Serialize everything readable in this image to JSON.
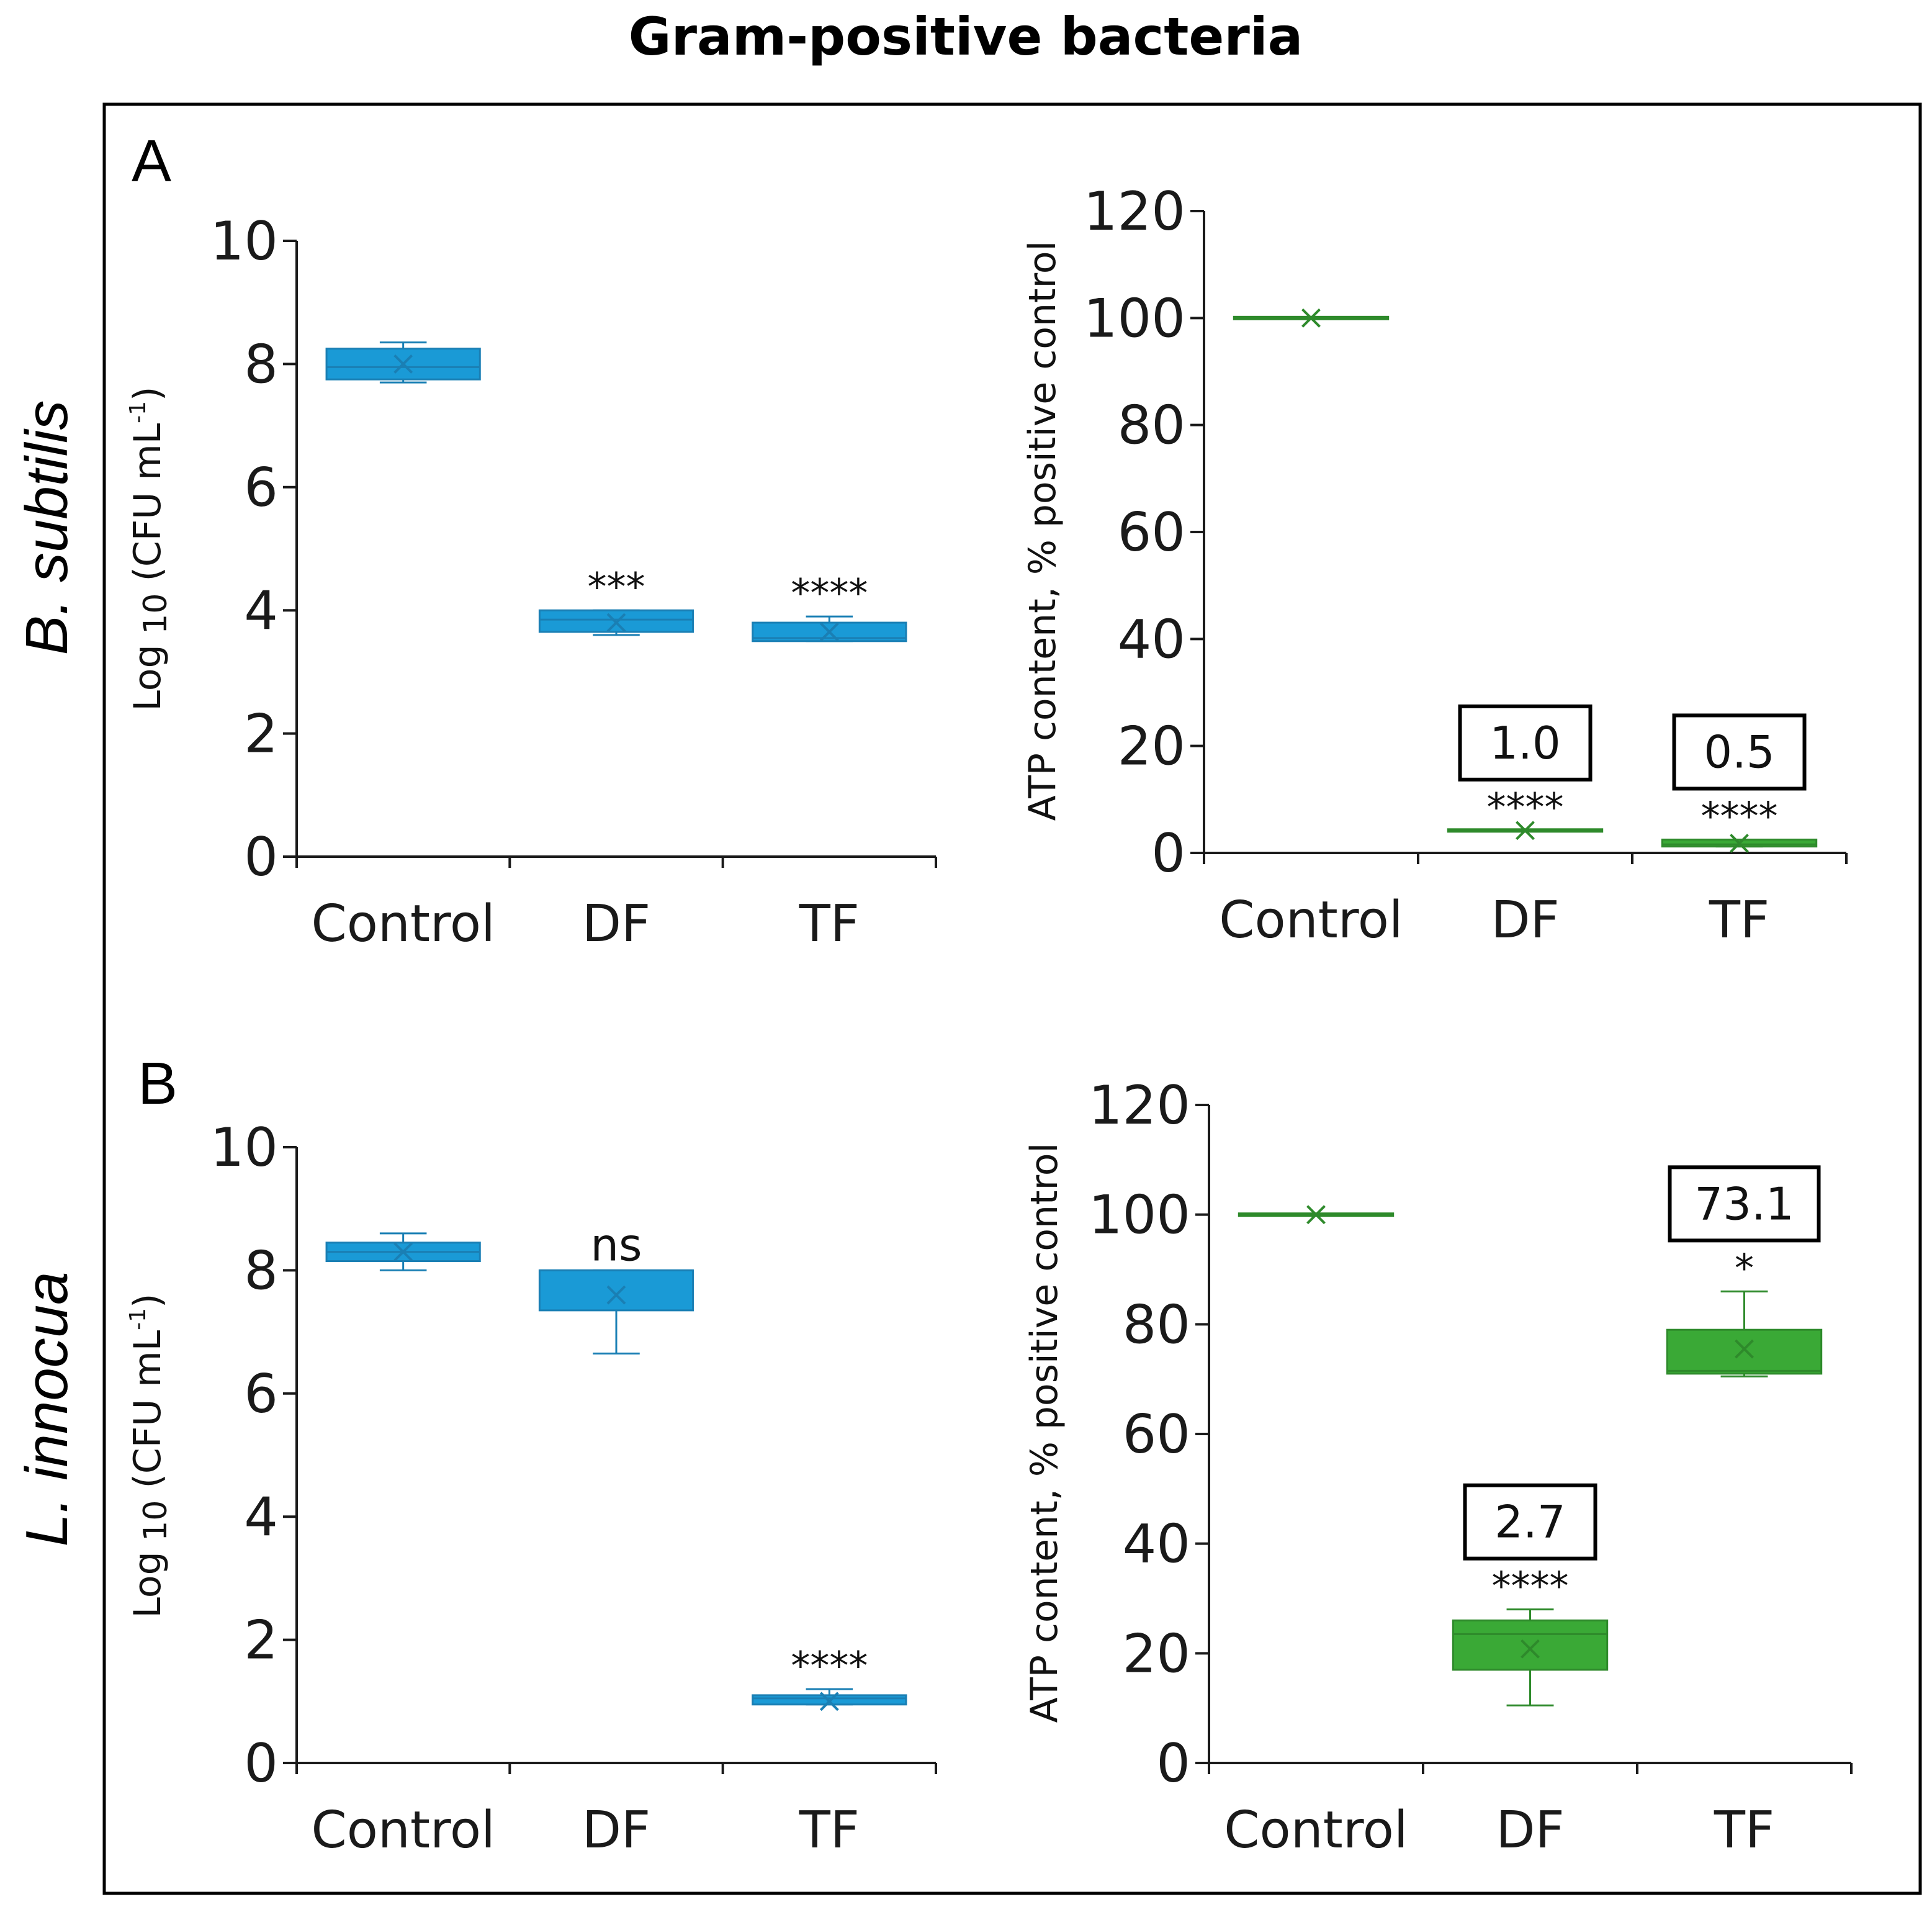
{
  "figure": {
    "title": "Gram-positive bacteria",
    "species": [
      {
        "panel": "A",
        "name": "B. subtilis"
      },
      {
        "panel": "B",
        "name": "L. innocua"
      }
    ],
    "colors": {
      "cfu": "#1a9ad6",
      "cfu_edge": "#1a7fb4",
      "atp": "#3aa936",
      "atp_edge": "#2e8a2b"
    }
  },
  "chart_data": [
    {
      "id": "A-left",
      "type": "box",
      "panel": "A",
      "organism": "B. subtilis",
      "ylabel_prefix": "Log",
      "ylabel_sub": "10",
      "ylabel_main": "(CFU mL",
      "ylabel_sup": "-1",
      "ylabel_end": ")",
      "ylim": [
        0,
        10
      ],
      "yticks": [
        0,
        2,
        4,
        6,
        8,
        10
      ],
      "categories": [
        "Control",
        "DF",
        "TF"
      ],
      "boxes": [
        {
          "min": 7.7,
          "q1": 7.75,
          "median": 7.95,
          "q3": 8.25,
          "max": 8.35,
          "mean": 8.0,
          "sig": ""
        },
        {
          "min": 3.6,
          "q1": 3.65,
          "median": 3.85,
          "q3": 4.0,
          "max": 4.0,
          "mean": 3.8,
          "sig": "***"
        },
        {
          "min": 3.5,
          "q1": 3.5,
          "median": 3.55,
          "q3": 3.8,
          "max": 3.9,
          "mean": 3.65,
          "sig": "****"
        }
      ]
    },
    {
      "id": "A-right",
      "type": "box",
      "panel": "A",
      "organism": "B. subtilis",
      "ylabel": "ATP content, % positive control",
      "ylim": [
        0,
        120
      ],
      "yticks": [
        0,
        20,
        40,
        60,
        80,
        100,
        120
      ],
      "categories": [
        "Control",
        "DF",
        "TF"
      ],
      "boxes": [
        {
          "min": 100,
          "q1": 100,
          "median": 100,
          "q3": 100,
          "max": 100,
          "mean": 100,
          "sig": "",
          "ratio": ""
        },
        {
          "min": 4.2,
          "q1": 4.2,
          "median": 4.2,
          "q3": 4.2,
          "max": 4.2,
          "mean": 4.2,
          "sig": "****",
          "ratio": "1.0"
        },
        {
          "min": 1.2,
          "q1": 1.2,
          "median": 1.6,
          "q3": 2.5,
          "max": 2.5,
          "mean": 1.8,
          "sig": "****",
          "ratio": "0.5"
        }
      ]
    },
    {
      "id": "B-left",
      "type": "box",
      "panel": "B",
      "organism": "L. innocua",
      "ylabel_prefix": "Log",
      "ylabel_sub": "10",
      "ylabel_main": "(CFU mL",
      "ylabel_sup": "-1",
      "ylabel_end": ")",
      "ylim": [
        0,
        10
      ],
      "yticks": [
        0,
        2,
        4,
        6,
        8,
        10
      ],
      "categories": [
        "Control",
        "DF",
        "TF"
      ],
      "boxes": [
        {
          "min": 8.0,
          "q1": 8.15,
          "median": 8.3,
          "q3": 8.45,
          "max": 8.6,
          "mean": 8.3,
          "sig": ""
        },
        {
          "min": 6.65,
          "q1": 7.35,
          "median": 8.0,
          "q3": 8.0,
          "max": 8.0,
          "mean": 7.6,
          "sig": "ns"
        },
        {
          "min": 0.95,
          "q1": 0.95,
          "median": 1.05,
          "q3": 1.1,
          "max": 1.2,
          "mean": 1.0,
          "sig": "****"
        }
      ]
    },
    {
      "id": "B-right",
      "type": "box",
      "panel": "B",
      "organism": "L. innocua",
      "ylabel": "ATP content, % positive control",
      "ylim": [
        0,
        120
      ],
      "yticks": [
        0,
        20,
        40,
        60,
        80,
        100,
        120
      ],
      "categories": [
        "Control",
        "DF",
        "TF"
      ],
      "boxes": [
        {
          "min": 100,
          "q1": 100,
          "median": 100,
          "q3": 100,
          "max": 100,
          "mean": 100,
          "sig": "",
          "ratio": ""
        },
        {
          "min": 10.5,
          "q1": 17,
          "median": 23.5,
          "q3": 26,
          "max": 28,
          "mean": 20.8,
          "sig": "****",
          "ratio": "2.7"
        },
        {
          "min": 70.5,
          "q1": 71,
          "median": 71.5,
          "q3": 79,
          "max": 86,
          "mean": 75.5,
          "sig": "*",
          "ratio": "73.1"
        }
      ]
    }
  ]
}
